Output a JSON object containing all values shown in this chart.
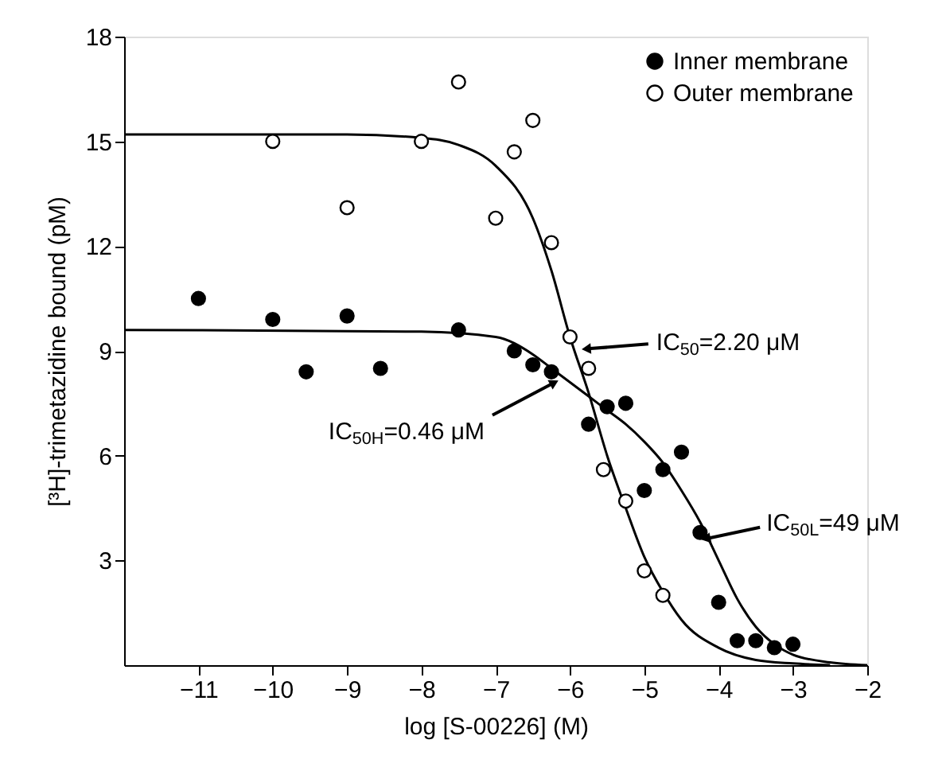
{
  "chart_data": {
    "type": "scatter",
    "marker": "circle",
    "legend": "top right",
    "xlabel": "log [S-00226] (M)",
    "ylabel": "[³H]-trimetazidine bound (pM)",
    "xlim": [
      -12,
      -2
    ],
    "xticks": [
      -11,
      -10,
      -9,
      -8,
      -7,
      -6,
      -5,
      -4,
      -3,
      -2
    ],
    "ylim": [
      0,
      18
    ],
    "yticks": [
      3,
      6,
      9,
      12,
      15,
      18
    ],
    "series": [
      {
        "name": "Inner membrane",
        "color": "#000000",
        "x": [
          -11.0,
          -10.0,
          -9.55,
          -9.0,
          -8.55,
          -7.5,
          -6.75,
          -6.5,
          -6.25,
          -5.75,
          -5.5,
          -5.25,
          -5.0,
          -4.75,
          -4.5,
          -4.25,
          -4.0,
          -3.75,
          -3.5,
          -3.25,
          -3.0
        ],
        "values": [
          10.5,
          9.9,
          8.4,
          10.0,
          8.5,
          9.6,
          9.0,
          8.6,
          8.4,
          6.9,
          7.4,
          7.5,
          5.0,
          5.6,
          6.1,
          3.8,
          1.8,
          0.7,
          0.7,
          0.5,
          0.6
        ]
      },
      {
        "name": "Outer membrane",
        "color": "#000000",
        "x": [
          -10.0,
          -9.0,
          -8.0,
          -7.5,
          -7.0,
          -6.75,
          -6.5,
          -6.25,
          -6.0,
          -5.75,
          -5.55,
          -5.25,
          -5.0,
          -4.75
        ],
        "values": [
          15.0,
          13.1,
          15.0,
          16.7,
          12.8,
          14.7,
          15.6,
          12.1,
          9.4,
          8.5,
          5.6,
          4.7,
          2.7,
          2.0
        ]
      },
      {
        "type": "line",
        "marker": "none",
        "color": "#000000",
        "x": [
          -12,
          -9,
          -8,
          -7.5,
          -7,
          -6.5,
          -6.25,
          -6,
          -5.75,
          -5.5,
          -5.25,
          -5,
          -4.75,
          -4.5,
          -4,
          -3.5,
          -3,
          -2.5
        ],
        "values": [
          15.2,
          15.2,
          15.1,
          14.9,
          14.3,
          12.8,
          11.3,
          9.4,
          7.8,
          6.0,
          4.5,
          3.1,
          2.1,
          1.3,
          0.5,
          0.15,
          0.05,
          0
        ]
      },
      {
        "type": "line",
        "marker": "none",
        "color": "#000000",
        "x": [
          -12,
          -8,
          -7,
          -6.5,
          -6.25,
          -6,
          -5.75,
          -5.5,
          -5.25,
          -5,
          -4.75,
          -4.5,
          -4.25,
          -4,
          -3.75,
          -3.5,
          -3.25,
          -3,
          -2.5,
          -2
        ],
        "values": [
          9.6,
          9.55,
          9.4,
          8.9,
          8.5,
          8.1,
          7.7,
          7.3,
          6.9,
          6.4,
          5.8,
          5.0,
          4.1,
          3.0,
          1.9,
          1.1,
          0.6,
          0.3,
          0.08,
          0
        ]
      }
    ],
    "annotations": [
      {
        "text": "IC$_{50}$=2.20 μM",
        "x": -5.76,
        "y": 9.06
      },
      {
        "text": "IC$_{50H}$=0.46 μM",
        "x": -6.23,
        "y": 8.07
      },
      {
        "text": "IC$_{50L}$=49 μM",
        "x": -4.15,
        "y": 3.63
      }
    ]
  }
}
